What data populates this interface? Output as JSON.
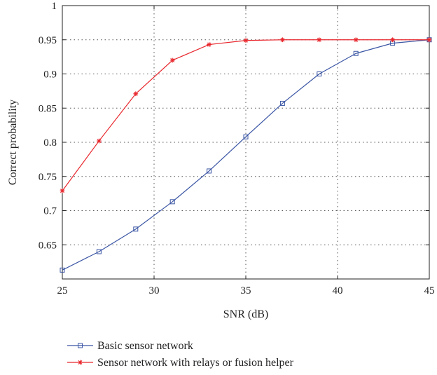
{
  "chart_data": {
    "type": "line",
    "title": "",
    "xlabel": "SNR (dB)",
    "ylabel": "Correct probability",
    "xlim": [
      25,
      45
    ],
    "ylim": [
      0.6,
      1.0
    ],
    "xticks": [
      25,
      30,
      35,
      40,
      45
    ],
    "xtick_labels": [
      "25",
      "30",
      "35",
      "40",
      "45"
    ],
    "yticks": [
      0.65,
      0.7,
      0.75,
      0.8,
      0.85,
      0.9,
      0.95,
      1.0
    ],
    "ytick_labels": [
      "0.65",
      "0.7",
      "0.75",
      "0.8",
      "0.85",
      "0.9",
      "0.95",
      "1"
    ],
    "grid": true,
    "legend_position": "below plot",
    "series": [
      {
        "name": "Basic sensor network",
        "color": "#3a55a4",
        "marker": "square",
        "x": [
          25,
          27,
          29,
          31,
          33,
          35,
          37,
          39,
          41,
          43,
          45
        ],
        "y": [
          0.613,
          0.64,
          0.673,
          0.713,
          0.758,
          0.808,
          0.857,
          0.9,
          0.93,
          0.945,
          0.95
        ]
      },
      {
        "name": "Sensor network with relays or fusion helper",
        "color": "#e8262c",
        "marker": "star",
        "x": [
          25,
          27,
          29,
          31,
          33,
          35,
          37,
          39,
          41,
          43,
          45
        ],
        "y": [
          0.729,
          0.802,
          0.871,
          0.92,
          0.943,
          0.949,
          0.95,
          0.95,
          0.95,
          0.95,
          0.95
        ]
      }
    ]
  }
}
